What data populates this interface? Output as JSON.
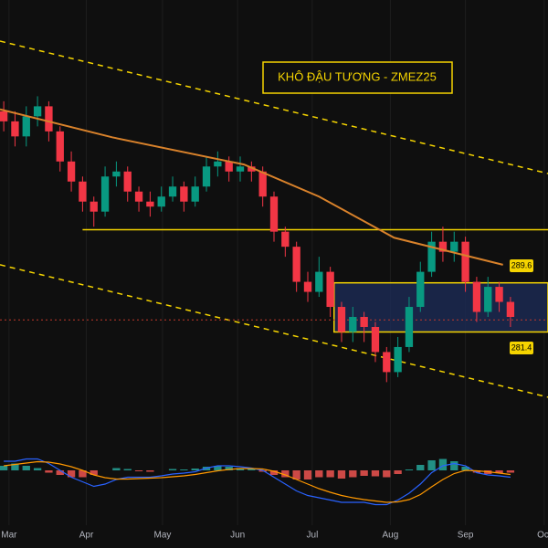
{
  "chart_data": {
    "type": "candlestick",
    "title": "KHÔ ĐẬU TƯƠNG - ZMEZ25",
    "x": [
      1,
      4,
      7,
      10,
      13,
      16,
      19,
      22,
      25,
      28,
      31,
      34,
      37,
      40,
      43,
      46,
      49,
      52,
      55,
      58,
      61,
      64,
      67,
      70,
      73,
      76,
      79,
      82,
      85,
      88,
      91,
      94,
      97,
      100,
      103,
      106,
      109,
      112,
      115,
      118,
      121,
      124,
      127,
      130,
      133,
      136
    ],
    "open": [
      305,
      304,
      302.5,
      304.5,
      305.5,
      303,
      300,
      298,
      296,
      295,
      298.5,
      299,
      297,
      296,
      295.5,
      296.5,
      297.5,
      296,
      297.5,
      299.5,
      300,
      299,
      299.5,
      299,
      296.5,
      293,
      291.5,
      288,
      287,
      289,
      285.5,
      283,
      284.5,
      283.5,
      281,
      279,
      281.5,
      285.5,
      289,
      292,
      291,
      292,
      288,
      285,
      287.5,
      286
    ],
    "high": [
      306,
      305,
      305.5,
      306.5,
      306,
      303.5,
      301,
      298.5,
      296.5,
      299.5,
      300,
      299.5,
      297.5,
      297,
      297.5,
      298.5,
      298,
      298.5,
      300.5,
      301,
      300.5,
      300.5,
      300,
      299.5,
      297,
      293.5,
      292,
      289,
      290.5,
      289.5,
      286,
      285.5,
      285,
      284,
      281.5,
      282.5,
      286.5,
      290,
      293,
      293.5,
      293,
      292.5,
      288.5,
      288.5,
      288,
      286.5
    ],
    "low": [
      303,
      301.5,
      301.5,
      303.5,
      302,
      299,
      297,
      295,
      293.5,
      294.5,
      297.5,
      296,
      295,
      294.5,
      295,
      296,
      295,
      295.5,
      297,
      298.5,
      298,
      298,
      298,
      295.5,
      292,
      290.5,
      287,
      286,
      286.5,
      284.5,
      282,
      282,
      282,
      280,
      278,
      278.5,
      281,
      285,
      288.5,
      290,
      290,
      287,
      284,
      284.5,
      285,
      283.5
    ],
    "close": [
      304,
      302.5,
      304.5,
      305.5,
      303,
      300,
      298,
      296,
      295,
      298.5,
      299,
      297,
      296,
      295.5,
      296.5,
      297.5,
      296,
      297.5,
      299.5,
      300,
      299,
      299.5,
      299,
      296.5,
      293,
      291.5,
      288,
      287,
      289,
      285.5,
      283,
      284.5,
      283.5,
      281,
      279,
      281.5,
      285.5,
      289,
      292,
      291,
      292,
      288,
      285,
      287.5,
      286,
      284.5
    ],
    "up_color": "#089981",
    "down_color": "#f23645",
    "xlim": [
      0,
      146
    ],
    "ylim": [
      273.3,
      316.1
    ],
    "xticks": [
      {
        "value": 2.4,
        "label": "Mar"
      },
      {
        "value": 23,
        "label": "Apr"
      },
      {
        "value": 43.3,
        "label": "May"
      },
      {
        "value": 63.3,
        "label": "Jun"
      },
      {
        "value": 83.2,
        "label": "Jul"
      },
      {
        "value": 104,
        "label": "Aug"
      },
      {
        "value": 124,
        "label": "Sep"
      },
      {
        "value": 145,
        "label": "Oct"
      }
    ],
    "grid": true,
    "moving_average": {
      "color": "#d9822b",
      "x": [
        0,
        30,
        65,
        85,
        105,
        134
      ],
      "values": [
        305.2,
        302.4,
        299.7,
        296.5,
        292.4,
        289.7
      ]
    },
    "trend_lines": [
      {
        "color": "#f5d400",
        "x": [
          0,
          146
        ],
        "values": [
          312,
          298.8
        ]
      },
      {
        "color": "#f5d400",
        "x": [
          0,
          146
        ],
        "values": [
          289.7,
          276.5
        ]
      }
    ],
    "support": {
      "color": "#f5d400",
      "x": [
        22,
        146
      ],
      "values": [
        293.2,
        293.2
      ]
    },
    "range_box": {
      "color": "#f5d400",
      "fill": "#1b2a55",
      "x": [
        89,
        146
      ],
      "values": [
        287.9,
        283
      ]
    },
    "last_price": {
      "color": "#c0392b",
      "value": 284.2
    },
    "price_labels": [
      289.6,
      281.4
    ],
    "macd": {
      "ylim": [
        -11,
        11
      ],
      "pos_color": "#26a69a",
      "neg_color": "#ef5350",
      "macd_color": "#2962ff",
      "signal_color": "#ff9800",
      "histogram": [
        1,
        1.5,
        1,
        0.5,
        -0.5,
        -1,
        -1.5,
        -1.5,
        -1,
        0,
        0.5,
        0.3,
        -0.2,
        -0.3,
        0,
        0.3,
        0.2,
        0.4,
        0.8,
        1,
        0.8,
        0.5,
        0.3,
        -0.3,
        -1,
        -1.5,
        -2,
        -2,
        -1.5,
        -1.5,
        -1.8,
        -1.5,
        -1.2,
        -1.3,
        -1.5,
        -0.8,
        0.2,
        1.2,
        2.2,
        2.5,
        2,
        0.8,
        -0.5,
        -0.8,
        -0.6,
        -0.5
      ],
      "macd_line": [
        2,
        2,
        2.5,
        2.5,
        1.5,
        0,
        -1.5,
        -2.5,
        -3.5,
        -3,
        -2,
        -1.5,
        -1.5,
        -1.5,
        -1.2,
        -0.8,
        -0.6,
        -0.3,
        0.5,
        1,
        1,
        0.8,
        0.5,
        0,
        -1.5,
        -3,
        -4.5,
        -5.5,
        -6,
        -6.5,
        -7,
        -7,
        -7,
        -7.5,
        -7.5,
        -6.5,
        -5,
        -3,
        -0.5,
        1,
        1.5,
        1,
        -0.5,
        -1,
        -1.2,
        -1.5
      ],
      "signal_line": [
        1,
        1.3,
        1.6,
        1.9,
        1.8,
        1.4,
        0.8,
        0,
        -1,
        -1.6,
        -1.9,
        -1.9,
        -1.8,
        -1.7,
        -1.6,
        -1.4,
        -1.2,
        -0.9,
        -0.5,
        -0.1,
        0.2,
        0.4,
        0.4,
        0.3,
        -0.2,
        -1,
        -2,
        -3,
        -4,
        -4.8,
        -5.5,
        -6,
        -6.4,
        -6.7,
        -7,
        -6.9,
        -6.4,
        -5.3,
        -3.6,
        -2,
        -0.7,
        0,
        -0.1,
        -0.3,
        -0.6,
        -0.9
      ]
    }
  }
}
